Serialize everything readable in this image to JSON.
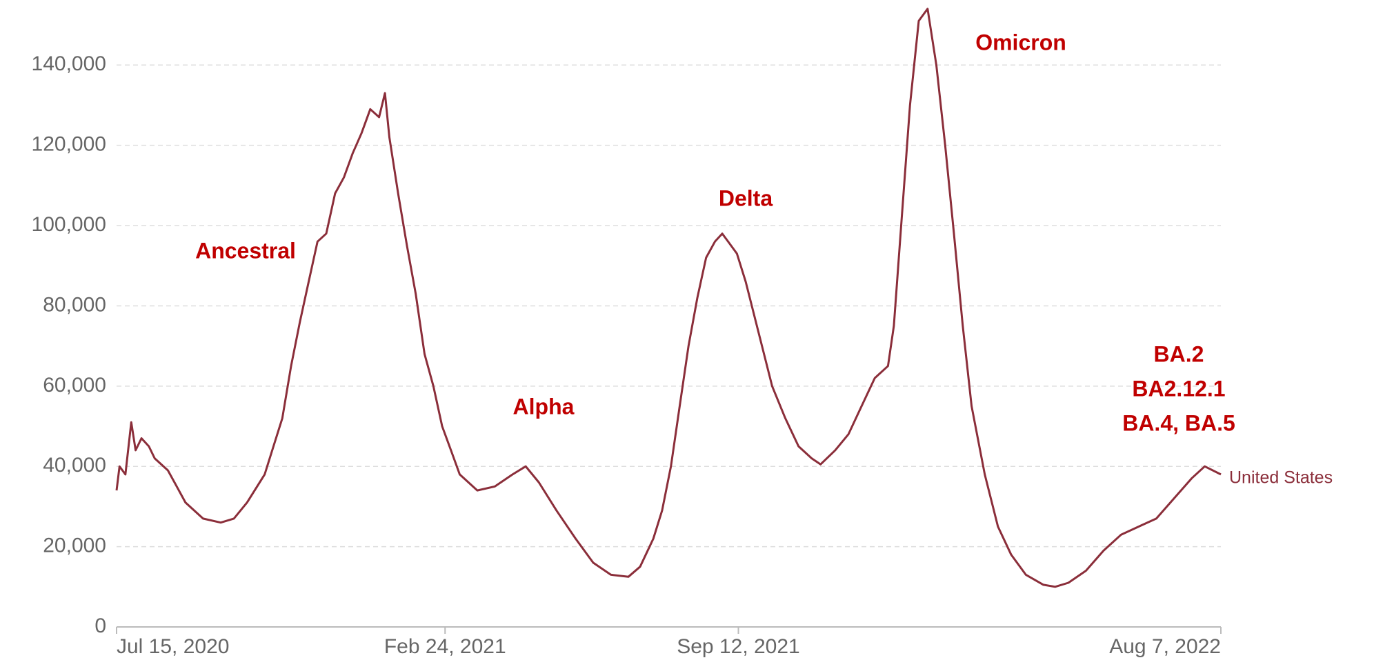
{
  "chart_data": {
    "type": "line",
    "x": [
      "2020-07-15",
      "2020-07-17",
      "2020-07-21",
      "2020-07-25",
      "2020-07-28",
      "2020-08-01",
      "2020-08-06",
      "2020-08-10",
      "2020-08-19",
      "2020-08-25",
      "2020-08-31",
      "2020-09-12",
      "2020-09-24",
      "2020-10-03",
      "2020-10-12",
      "2020-10-24",
      "2020-10-30",
      "2020-11-05",
      "2020-11-11",
      "2020-11-17",
      "2020-11-23",
      "2020-11-29",
      "2020-12-05",
      "2020-12-11",
      "2020-12-17",
      "2020-12-23",
      "2020-12-29",
      "2021-01-04",
      "2021-01-10",
      "2021-01-14",
      "2021-01-17",
      "2021-01-23",
      "2021-01-29",
      "2021-02-04",
      "2021-02-10",
      "2021-02-16",
      "2021-02-22",
      "2021-02-28",
      "2021-03-06",
      "2021-03-18",
      "2021-03-30",
      "2021-04-11",
      "2021-04-20",
      "2021-04-29",
      "2021-05-11",
      "2021-05-24",
      "2021-06-05",
      "2021-06-17",
      "2021-06-29",
      "2021-07-07",
      "2021-07-16",
      "2021-07-22",
      "2021-07-28",
      "2021-08-03",
      "2021-08-09",
      "2021-08-15",
      "2021-08-21",
      "2021-08-27",
      "2021-09-01",
      "2021-09-05",
      "2021-09-11",
      "2021-09-17",
      "2021-09-26",
      "2021-10-05",
      "2021-10-14",
      "2021-10-23",
      "2021-11-01",
      "2021-11-07",
      "2021-11-17",
      "2021-11-26",
      "2021-12-05",
      "2021-12-14",
      "2021-12-23",
      "2021-12-27",
      "2022-01-01",
      "2022-01-07",
      "2022-01-13",
      "2022-01-19",
      "2022-01-25",
      "2022-01-31",
      "2022-02-06",
      "2022-02-12",
      "2022-02-18",
      "2022-02-27",
      "2022-03-08",
      "2022-03-17",
      "2022-03-27",
      "2022-04-08",
      "2022-04-16",
      "2022-04-25",
      "2022-05-07",
      "2022-05-19",
      "2022-05-31",
      "2022-06-12",
      "2022-06-24",
      "2022-07-06",
      "2022-07-18",
      "2022-07-27",
      "2022-08-07"
    ],
    "series": [
      {
        "name": "United States",
        "color": "#8b2e3a",
        "values": [
          34000,
          40000,
          38000,
          51000,
          44000,
          47000,
          45000,
          42000,
          39000,
          35000,
          31000,
          27000,
          26000,
          27000,
          31000,
          38000,
          45000,
          52000,
          65000,
          76000,
          86000,
          96000,
          98000,
          108000,
          112000,
          118000,
          123000,
          129000,
          127000,
          133000,
          122000,
          108000,
          95000,
          83000,
          68000,
          60000,
          50000,
          44000,
          38000,
          34000,
          35000,
          38000,
          40000,
          36000,
          29000,
          22000,
          16000,
          13000,
          12500,
          15000,
          22000,
          29000,
          40000,
          55000,
          70000,
          82000,
          92000,
          96000,
          98000,
          96000,
          93000,
          86000,
          73000,
          60000,
          52000,
          45000,
          42000,
          40500,
          44000,
          48000,
          55000,
          62000,
          65000,
          75000,
          100000,
          130000,
          151000,
          154000,
          140000,
          120000,
          98000,
          75000,
          55000,
          38000,
          25000,
          18000,
          13000,
          10500,
          10000,
          11000,
          14000,
          19000,
          23000,
          25000,
          27000,
          32000,
          37000,
          40000,
          38000
        ]
      }
    ],
    "xlim": [
      "2020-07-15",
      "2022-08-07"
    ],
    "xticks": [
      {
        "value": "2020-07-15",
        "label": "Jul 15, 2020"
      },
      {
        "value": "2021-02-24",
        "label": "Feb 24, 2021"
      },
      {
        "value": "2021-09-12",
        "label": "Sep 12, 2021"
      },
      {
        "value": "2022-08-07",
        "label": "Aug 7, 2022"
      }
    ],
    "ylim": [
      0,
      155000
    ],
    "yticks": [
      0,
      {
        "value": 20000,
        "label": "20,000"
      },
      {
        "value": 40000,
        "label": "40,000"
      },
      {
        "value": 60000,
        "label": "60,000"
      },
      {
        "value": 80000,
        "label": "80,000"
      },
      {
        "value": 100000,
        "label": "100,000"
      },
      {
        "value": 120000,
        "label": "120,000"
      },
      {
        "value": 140000,
        "label": "140,000"
      }
    ],
    "grid": true,
    "annotations": [
      "Ancestral",
      "Alpha",
      "Delta",
      "Omicron",
      "BA.2",
      "BA2.12.1",
      "BA.4, BA.5"
    ]
  }
}
